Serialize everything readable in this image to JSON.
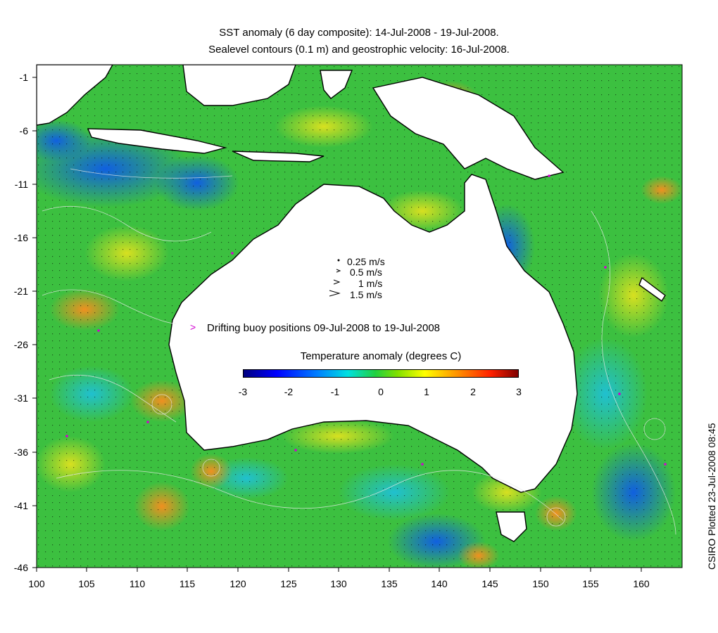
{
  "title": {
    "line1": "SST anomaly (6 day composite): 14-Jul-2008 - 19-Jul-2008.",
    "line2": "Sealevel contours (0.1 m) and geostrophic velocity: 16-Jul-2008."
  },
  "axes": {
    "lon_ticks": [
      "100",
      "105",
      "110",
      "115",
      "120",
      "125",
      "130",
      "135",
      "140",
      "145",
      "150",
      "155",
      "160"
    ],
    "lat_ticks": [
      "-1",
      "-6",
      "-11",
      "-16",
      "-21",
      "-26",
      "-31",
      "-36",
      "-41",
      "-46"
    ],
    "lon_range": [
      100,
      164
    ],
    "lat_range": [
      -46,
      1
    ]
  },
  "velocity_legend": [
    "0.25 m/s",
    "0.5 m/s",
    "1 m/s",
    "1.5 m/s"
  ],
  "buoy_legend": "Drifting buoy positions 09-Jul-2008 to 19-Jul-2008",
  "colorbar": {
    "title": "Temperature anomaly (degrees C)",
    "ticks": [
      "-3",
      "-2",
      "-1",
      "0",
      "1",
      "2",
      "3"
    ],
    "range": [
      -3,
      3
    ]
  },
  "credit": "CSIRO Plotted 23-Jul-2008 08:45",
  "colors": {
    "land": "#ffffff",
    "coastline": "#000000",
    "ocean_base": "#40c040",
    "buoy": "#d000d0",
    "contour": "#e8e8e8"
  }
}
